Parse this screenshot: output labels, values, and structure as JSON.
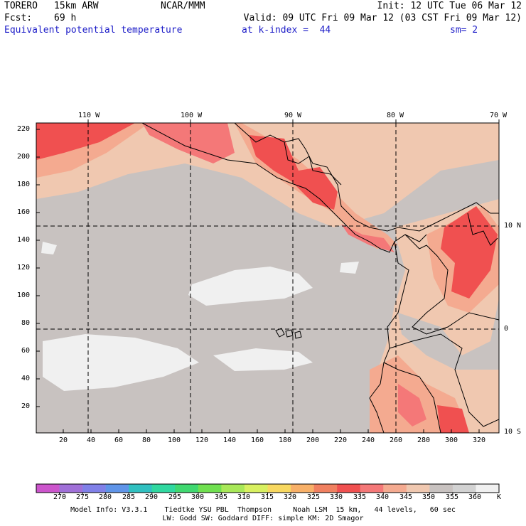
{
  "header": {
    "model": "TORERO",
    "resolution": "15km ARW",
    "center": "NCAR/MMM",
    "init": "Init: 12 UTC Tue 06 Mar 12",
    "fcst_label": "Fcst:",
    "fcst_value": "69 h",
    "valid": "Valid: 09 UTC Fri 09 Mar 12 (03 CST Fri 09 Mar 12)",
    "field": "Equivalent potential temperature",
    "level": "at k-index =  44",
    "smoothing": "sm= 2"
  },
  "map": {
    "top_lon_labels": [
      "110 W",
      "100 W",
      "90 W",
      "80 W",
      "70 W"
    ],
    "right_lat_labels": [
      "10 N",
      "0",
      "10 S"
    ],
    "y_grid_labels": [
      "220",
      "200",
      "180",
      "160",
      "140",
      "120",
      "100",
      "80",
      "60",
      "40",
      "20"
    ],
    "x_grid_labels": [
      "20",
      "40",
      "60",
      "80",
      "100",
      "120",
      "140",
      "160",
      "180",
      "200",
      "220",
      "240",
      "260",
      "280",
      "300",
      "320"
    ]
  },
  "colorbar": {
    "unit": "K",
    "labels": [
      "270",
      "275",
      "280",
      "285",
      "290",
      "295",
      "300",
      "305",
      "310",
      "315",
      "320",
      "325",
      "330",
      "335",
      "340",
      "345",
      "350",
      "355",
      "360"
    ],
    "colors": [
      "#cc55cc",
      "#a070d8",
      "#8080e8",
      "#5f94e8",
      "#30c0c0",
      "#30d8a0",
      "#40d870",
      "#70e050",
      "#a8e858",
      "#d8f060",
      "#f8d860",
      "#f8b068",
      "#f08060",
      "#f05050",
      "#f47878",
      "#f4aa90",
      "#f0c8b0",
      "#c8c2c0",
      "#d2d2d2",
      "#f0f0f0"
    ]
  },
  "footer": {
    "line1": "Model Info: V3.3.1    Tiedtke YSU PBL  Thompson     Noah LSM  15 km,   44 levels,   60 sec",
    "line2": "LW: Godd SW: Goddard DIFF: simple KM: 2D Smagor"
  }
}
